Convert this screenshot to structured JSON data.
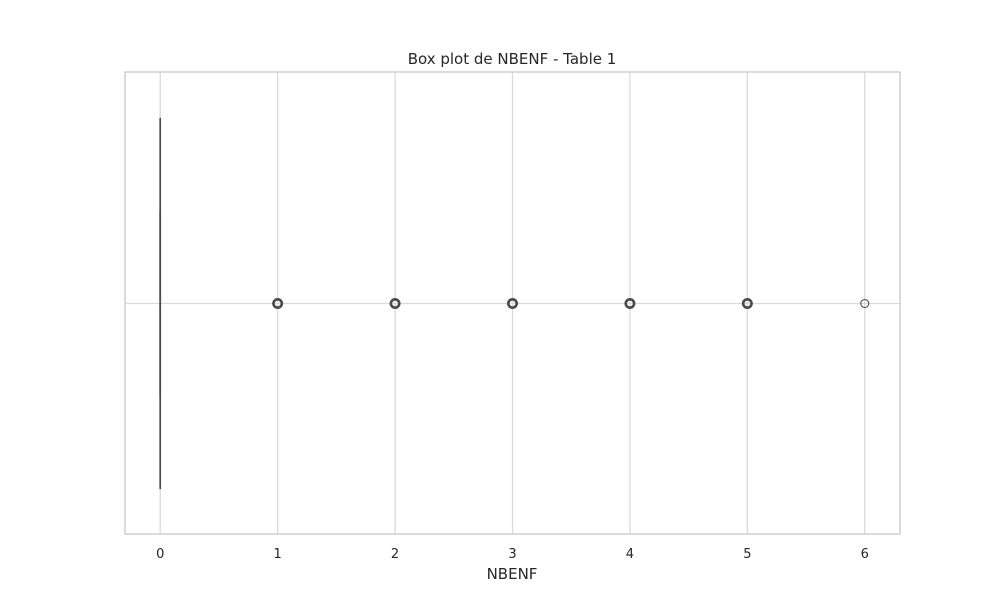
{
  "chart_data": {
    "type": "box",
    "title": "Box plot de NBENF - Table 1",
    "xlabel": "NBENF",
    "ylabel": "",
    "orientation": "horizontal",
    "xlim": [
      -0.3,
      6.3
    ],
    "xticks": [
      "0",
      "1",
      "2",
      "3",
      "4",
      "5",
      "6"
    ],
    "grid": true,
    "box": {
      "min": 0,
      "q1": 0,
      "median": 0,
      "q3": 0,
      "max": 0
    },
    "outliers": [
      1,
      2,
      3,
      4,
      5,
      6
    ],
    "colors": {
      "box_line": "#4a4a4a",
      "outlier": "#4a4a4a",
      "grid": "#d9d9d9",
      "frame": "#cfcfcf"
    }
  }
}
